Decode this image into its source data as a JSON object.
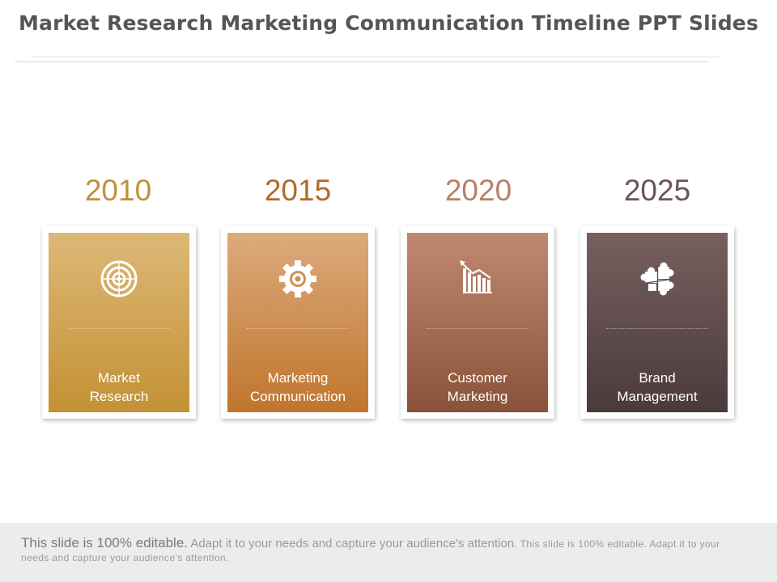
{
  "title": "Market Research Marketing Communication Timeline PPT Slides",
  "timeline": [
    {
      "year": "2010",
      "year_color": "#c0903a",
      "label_line1": "Market",
      "label_line2": "Research",
      "icon": "target-icon",
      "color_top": "#ddb876",
      "color_bottom": "#c39135"
    },
    {
      "year": "2015",
      "year_color": "#b06a28",
      "label_line1": "Marketing",
      "label_line2": "Communication",
      "icon": "gear-icon",
      "color_top": "#dcaa7c",
      "color_bottom": "#c0752d"
    },
    {
      "year": "2020",
      "year_color": "#b8806a",
      "label_line1": "Customer",
      "label_line2": "Marketing",
      "icon": "declining-chart-icon",
      "color_top": "#c08870",
      "color_bottom": "#8a5238"
    },
    {
      "year": "2025",
      "year_color": "#6b5556",
      "label_line1": "Brand",
      "label_line2": "Management",
      "icon": "puzzle-icon",
      "color_top": "#77605f",
      "color_bottom": "#4a3a3c"
    }
  ],
  "footer": {
    "part1": "This slide is 100% editable.",
    "part2": "Adapt it to your needs and capture your audience's attention.",
    "part3": "This slide is 100% editable. Adapt it to your needs and capture your audience's attention."
  }
}
